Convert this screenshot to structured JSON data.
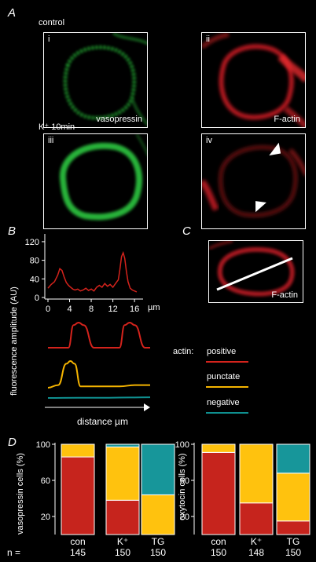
{
  "figure": {
    "panel_labels": {
      "A": "A",
      "B": "B",
      "C": "C",
      "D": "D"
    },
    "section_A": {
      "condition_top": "control",
      "condition_bottom": "K⁺ 10min",
      "panels": [
        {
          "id": "i",
          "caption": "vasopressin",
          "color": "#2fbf3a"
        },
        {
          "id": "ii",
          "caption": "F-actin",
          "color": "#e0202a"
        },
        {
          "id": "iii",
          "caption": "",
          "color": "#2fbf3a"
        },
        {
          "id": "iv",
          "caption": "",
          "color": "#e0202a"
        }
      ]
    },
    "section_B": {
      "ylabel": "fluorescence amplitude (AU)",
      "xlabel": "distance µm",
      "x_unit": "µm",
      "y_ticks": [
        "120",
        "80",
        "40",
        "0"
      ],
      "x_ticks": [
        "0",
        "4",
        "8",
        "12",
        "16"
      ],
      "legend_title": "actin:",
      "legend": [
        {
          "label": "positive",
          "color": "#d4231c"
        },
        {
          "label": "punctate",
          "color": "#f5b400"
        },
        {
          "label": "negative",
          "color": "#0f8f8f"
        }
      ]
    },
    "section_C": {
      "caption": "F-actin"
    },
    "section_D": {
      "n_label": "n =",
      "colors": {
        "positive": "#c6241d",
        "punctate": "#ffc20e",
        "negative": "#17969a"
      }
    }
  },
  "chart_data": [
    {
      "type": "line",
      "title": "",
      "xlabel": "",
      "ylabel": "fluorescence amplitude (AU)",
      "x_unit": "µm",
      "xlim": [
        0,
        17
      ],
      "ylim": [
        0,
        130
      ],
      "series": [
        {
          "color": "#d4231c",
          "x": [
            0.0,
            0.6,
            1.2,
            1.8,
            2.2,
            2.6,
            3.0,
            3.4,
            3.8,
            4.2,
            4.6,
            5.0,
            5.5,
            6.0,
            6.5,
            7.0,
            7.5,
            8.0,
            8.5,
            9.0,
            9.5,
            10.0,
            10.5,
            11.0,
            11.5,
            12.0,
            12.5,
            13.0,
            13.3,
            13.6,
            13.9,
            14.2,
            14.5,
            14.8,
            15.2,
            15.6,
            16.0,
            16.4
          ],
          "y": [
            20,
            28,
            34,
            48,
            62,
            58,
            44,
            32,
            26,
            22,
            18,
            16,
            18,
            14,
            16,
            20,
            15,
            18,
            14,
            22,
            26,
            22,
            30,
            24,
            28,
            22,
            30,
            38,
            60,
            88,
            96,
            84,
            56,
            34,
            20,
            16,
            14,
            12
          ]
        }
      ]
    },
    {
      "type": "line",
      "title": "",
      "xlabel": "distance µm",
      "ylabel": "fluorescence amplitude (AU)",
      "note": "schematic profiles",
      "series": [
        {
          "name": "positive",
          "color": "#d4231c",
          "x": [
            0,
            0.2,
            0.25,
            0.3,
            0.35,
            0.45,
            0.6,
            0.7,
            0.75,
            0.8,
            0.85,
            0.95,
            1.0
          ],
          "y": [
            0,
            0,
            0.9,
            1,
            0.9,
            0,
            0,
            0,
            0.9,
            1,
            0.9,
            0,
            0
          ]
        },
        {
          "name": "punctate",
          "color": "#f5b400",
          "x": [
            0,
            0.1,
            0.18,
            0.22,
            0.26,
            0.32,
            0.5,
            0.7,
            0.85,
            1.0
          ],
          "y": [
            0,
            0.1,
            0.9,
            1,
            0.9,
            0.05,
            0.05,
            0.05,
            0.1,
            0.1
          ]
        },
        {
          "name": "negative",
          "color": "#0f8f8f",
          "x": [
            0,
            0.3,
            0.6,
            0.8,
            1.0
          ],
          "y": [
            0,
            0.05,
            0.05,
            0.1,
            0.15
          ]
        }
      ]
    },
    {
      "type": "bar",
      "stacked": true,
      "title": "",
      "ylabel": "vasopressin cells (%)",
      "xlabel": "",
      "ylim": [
        0,
        100
      ],
      "y_ticks": [
        20,
        60,
        100
      ],
      "categories": [
        "con",
        "K⁺",
        "TG"
      ],
      "n": [
        "145",
        "150",
        "150"
      ],
      "series": [
        {
          "name": "positive",
          "values": [
            86,
            38,
            0
          ]
        },
        {
          "name": "punctate",
          "values": [
            14,
            59,
            44
          ]
        },
        {
          "name": "negative",
          "values": [
            0,
            3,
            56
          ]
        }
      ]
    },
    {
      "type": "bar",
      "stacked": true,
      "title": "",
      "ylabel": "oxytocin cells (%)",
      "xlabel": "",
      "ylim": [
        0,
        100
      ],
      "y_ticks": [
        20,
        60,
        100
      ],
      "categories": [
        "con",
        "K⁺",
        "TG"
      ],
      "n": [
        "150",
        "148",
        "150"
      ],
      "series": [
        {
          "name": "positive",
          "values": [
            91,
            35,
            15
          ]
        },
        {
          "name": "punctate",
          "values": [
            9,
            65,
            53
          ]
        },
        {
          "name": "negative",
          "values": [
            0,
            0,
            32
          ]
        }
      ]
    }
  ]
}
